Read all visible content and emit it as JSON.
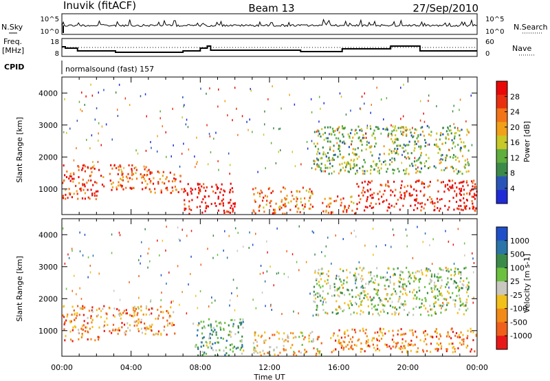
{
  "header": {
    "station": "Inuvik (fitACF)",
    "beam": "Beam 13",
    "date": "27/Sep/2010"
  },
  "panels_small": {
    "nsky_label": "N.Sky",
    "nsearch_label": "N.Search",
    "freq_label_line1": "Freq.",
    "freq_label_line2": "[MHz]",
    "nave_label": "Nave",
    "cpid_label": "CPID",
    "cpid_text": "normalsound (fast) 157",
    "noise_ticks_left": [
      "10^5",
      "10^0"
    ],
    "noise_ticks_right": [
      "10^5",
      "10^0"
    ],
    "freq_ticks": [
      "18",
      "8"
    ],
    "nave_ticks": [
      "60",
      "0"
    ]
  },
  "colors": {
    "power_scale": [
      "#1f2bd6",
      "#2a55b8",
      "#3c8a4a",
      "#5fae3e",
      "#c8c828",
      "#f2a01a",
      "#f27418",
      "#e83010",
      "#e80808"
    ],
    "velocity_scale": [
      "#1f4fc8",
      "#2a74a8",
      "#3c8a4a",
      "#6cc040",
      "#c8c8c0",
      "#f2c01a",
      "#f28a18",
      "#f0601a",
      "#e81818"
    ]
  },
  "chart_data": [
    {
      "type": "heatmap",
      "title": "Power",
      "xlabel": "",
      "ylabel": "Slant Range [km]",
      "xlim": [
        "00:00",
        "24:00"
      ],
      "ylim": [
        200,
        4500
      ],
      "x_ticks": [
        "00:00",
        "04:00",
        "08:00",
        "12:00",
        "16:00",
        "20:00",
        "00:00"
      ],
      "y_ticks": [
        "1000",
        "2000",
        "3000",
        "4000"
      ],
      "colorbar": {
        "label": "Power [dB]",
        "ticks": [
          "4",
          "8",
          "12",
          "16",
          "20",
          "24",
          "28"
        ]
      },
      "echo_bands": [
        {
          "t0": 0.0,
          "t1": 2.2,
          "r0": 700,
          "r1": 1800,
          "level": 0.85
        },
        {
          "t0": 2.2,
          "t1": 5.0,
          "r0": 1000,
          "r1": 1800,
          "level": 0.75
        },
        {
          "t0": 5.0,
          "t1": 7.0,
          "r0": 900,
          "r1": 1600,
          "level": 0.8
        },
        {
          "t0": 7.0,
          "t1": 10.0,
          "r0": 250,
          "r1": 1200,
          "level": 0.95
        },
        {
          "t0": 11.0,
          "t1": 14.5,
          "r0": 250,
          "r1": 1100,
          "level": 0.7
        },
        {
          "t0": 15.0,
          "t1": 17.0,
          "r0": 250,
          "r1": 800,
          "level": 0.75
        },
        {
          "t0": 17.0,
          "t1": 24.0,
          "r0": 350,
          "r1": 1300,
          "level": 0.9
        },
        {
          "t0": 14.5,
          "t1": 23.5,
          "r0": 1500,
          "r1": 3000,
          "level": 0.4
        }
      ]
    },
    {
      "type": "heatmap",
      "title": "Velocity",
      "xlabel": "Time UT",
      "ylabel": "Slant Range [km]",
      "xlim": [
        "00:00",
        "24:00"
      ],
      "ylim": [
        200,
        4500
      ],
      "x_ticks": [
        "00:00",
        "04:00",
        "08:00",
        "12:00",
        "16:00",
        "20:00",
        "00:00"
      ],
      "y_ticks": [
        "1000",
        "2000",
        "3000",
        "4000"
      ],
      "colorbar": {
        "label": "Velocity [m s-1]",
        "ticks": [
          "1000",
          "500",
          "100",
          "25",
          "-25",
          "-100",
          "-500",
          "-1000"
        ]
      },
      "echo_bands": [
        {
          "t0": 0.0,
          "t1": 2.2,
          "r0": 700,
          "r1": 1800,
          "level": 0.75
        },
        {
          "t0": 2.2,
          "t1": 6.5,
          "r0": 900,
          "r1": 1800,
          "level": 0.72
        },
        {
          "t0": 7.5,
          "t1": 10.5,
          "r0": 250,
          "r1": 1400,
          "level": 0.35
        },
        {
          "t0": 11.0,
          "t1": 15.0,
          "r0": 250,
          "r1": 1000,
          "level": 0.6
        },
        {
          "t0": 15.5,
          "t1": 24.0,
          "r0": 350,
          "r1": 1100,
          "level": 0.78
        },
        {
          "t0": 14.5,
          "t1": 23.5,
          "r0": 1500,
          "r1": 3000,
          "level": 0.45
        }
      ]
    }
  ]
}
